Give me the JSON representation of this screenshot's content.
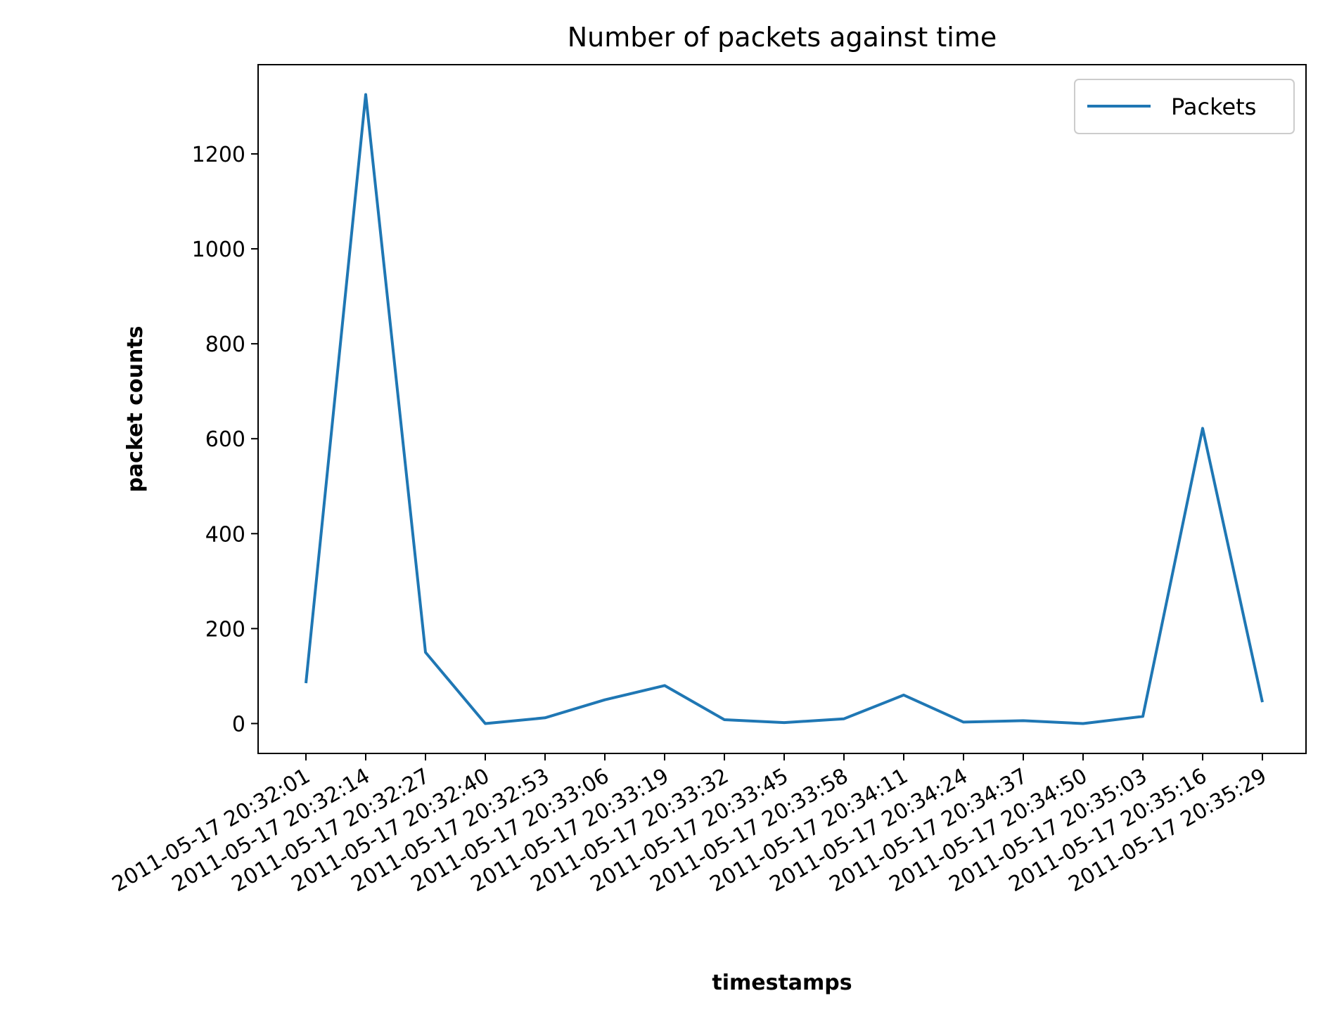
{
  "chart_data": {
    "type": "line",
    "title": "Number of packets against time",
    "xlabel": "timestamps",
    "ylabel": "packet counts",
    "x": [
      "2011-05-17 20:32:01",
      "2011-05-17 20:32:14",
      "2011-05-17 20:32:27",
      "2011-05-17 20:32:40",
      "2011-05-17 20:32:53",
      "2011-05-17 20:33:06",
      "2011-05-17 20:33:19",
      "2011-05-17 20:33:32",
      "2011-05-17 20:33:45",
      "2011-05-17 20:33:58",
      "2011-05-17 20:34:11",
      "2011-05-17 20:34:24",
      "2011-05-17 20:34:37",
      "2011-05-17 20:34:50",
      "2011-05-17 20:35:03",
      "2011-05-17 20:35:16",
      "2011-05-17 20:35:29"
    ],
    "series": [
      {
        "name": "Packets",
        "color": "#1f77b4",
        "values": [
          85,
          1325,
          150,
          0,
          12,
          50,
          80,
          8,
          2,
          10,
          60,
          3,
          6,
          0,
          15,
          622,
          45
        ]
      }
    ],
    "ylim": [
      -63,
      1388
    ],
    "yticks": [
      0,
      200,
      400,
      600,
      800,
      1000,
      1200
    ],
    "grid": false,
    "legend": "top-right"
  }
}
